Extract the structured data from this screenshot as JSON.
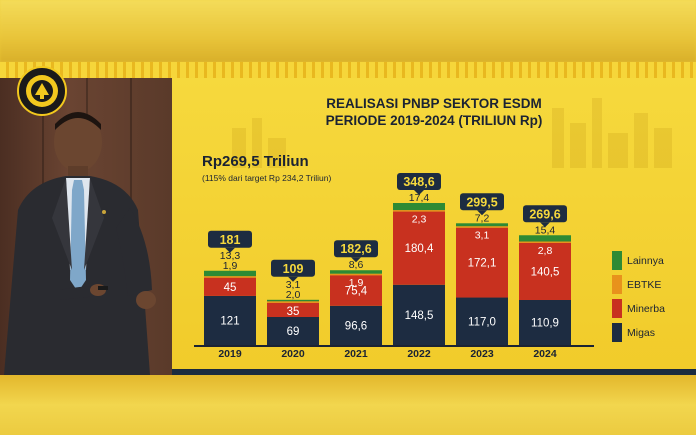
{
  "slide": {
    "title_line1": "REALISASI PNBP SEKTOR ESDM",
    "title_line2": "PERIODE 2019-2024 (TRILIUN Rp)",
    "headline": "Rp269,5 Triliun",
    "subheadline": "(115% dari target Rp 234,2 Triliun)"
  },
  "colors": {
    "migas": "#1d2c41",
    "minerba": "#c8311f",
    "ebtke": "#e8921c",
    "lainnya": "#2e8a34",
    "total_badge": "#1d2c41",
    "slide_bg": "#f2cd2f"
  },
  "chart_data": {
    "type": "bar",
    "stacked": true,
    "categories": [
      "2019",
      "2020",
      "2021",
      "2022",
      "2023",
      "2024"
    ],
    "series": [
      {
        "name": "Migas",
        "values": [
          "121",
          "69",
          "96,6",
          "148,5",
          "117,0",
          "110,9"
        ],
        "numeric": [
          121,
          69,
          96.6,
          148.5,
          117.0,
          110.9
        ]
      },
      {
        "name": "Minerba",
        "values": [
          "45",
          "35",
          "75,4",
          "180,4",
          "172,1",
          "140,5"
        ],
        "numeric": [
          45,
          35,
          75.4,
          180.4,
          172.1,
          140.5
        ]
      },
      {
        "name": "EBTKE",
        "values": [
          "1,9",
          "2,0",
          "1,9",
          "2,3",
          "3,1",
          "2,8"
        ],
        "numeric": [
          1.9,
          2.0,
          1.9,
          2.3,
          3.1,
          2.8
        ]
      },
      {
        "name": "Lainnya",
        "values": [
          "13,3",
          "3,1",
          "8,6",
          "17,4",
          "7,2",
          "15,4"
        ],
        "numeric": [
          13.3,
          3.1,
          8.6,
          17.4,
          7.2,
          15.4
        ]
      }
    ],
    "totals": [
      "181",
      "109",
      "182,6",
      "348,6",
      "299,5",
      "269,6"
    ],
    "legend": [
      "Lainnya",
      "EBTKE",
      "Minerba",
      "Migas"
    ],
    "legend_position": "right",
    "ylim": [
      0,
      350
    ],
    "grid": false
  }
}
